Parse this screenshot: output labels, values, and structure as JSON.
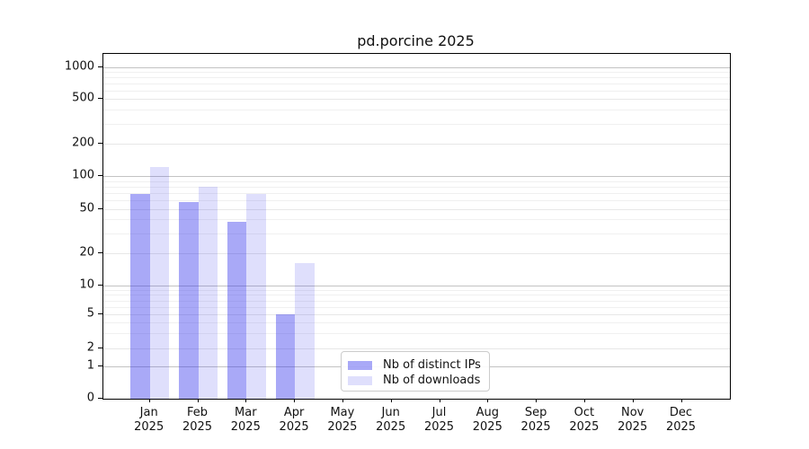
{
  "title": "pd.porcine 2025",
  "colors": {
    "distinct_ips_bar": "rgba(40,40,235,0.40)",
    "downloads_bar": "rgba(40,40,235,0.15)",
    "major_gridline": "#c3c3c3",
    "minor_gridline": "#f0f0f0",
    "spine": "#000000",
    "legend_border": "#cccccc"
  },
  "legend": {
    "items": [
      {
        "label": "Nb of distinct IPs",
        "color": "rgba(40,40,235,0.40)"
      },
      {
        "label": "Nb of downloads",
        "color": "rgba(40,40,235,0.15)"
      }
    ]
  },
  "axes": {
    "y_tick_labels": [
      "0",
      "1",
      "2",
      "5",
      "10",
      "20",
      "50",
      "100",
      "200",
      "500",
      "1000"
    ],
    "x_month_labels": [
      "Jan",
      "Feb",
      "Mar",
      "Apr",
      "May",
      "Jun",
      "Jul",
      "Aug",
      "Sep",
      "Oct",
      "Nov",
      "Dec"
    ],
    "x_year_label": "2025"
  },
  "chart_data": {
    "type": "bar",
    "title": "pd.porcine 2025",
    "categories": [
      "Jan 2025",
      "Feb 2025",
      "Mar 2025",
      "Apr 2025",
      "May 2025",
      "Jun 2025",
      "Jul 2025",
      "Aug 2025",
      "Sep 2025",
      "Oct 2025",
      "Nov 2025",
      "Dec 2025"
    ],
    "series": [
      {
        "name": "Nb of distinct IPs",
        "values": [
          68,
          58,
          38,
          5,
          0,
          0,
          0,
          0,
          0,
          0,
          0,
          0
        ]
      },
      {
        "name": "Nb of downloads",
        "values": [
          120,
          80,
          68,
          16,
          0,
          0,
          0,
          0,
          0,
          0,
          0,
          0
        ]
      }
    ],
    "xlabel": "",
    "ylabel": "",
    "yscale": "symlog",
    "yticks": [
      0,
      1,
      2,
      5,
      10,
      20,
      50,
      100,
      200,
      500,
      1000
    ],
    "ylim": [
      0,
      1300
    ],
    "grid": "both",
    "legend_position": "bottom-center"
  }
}
